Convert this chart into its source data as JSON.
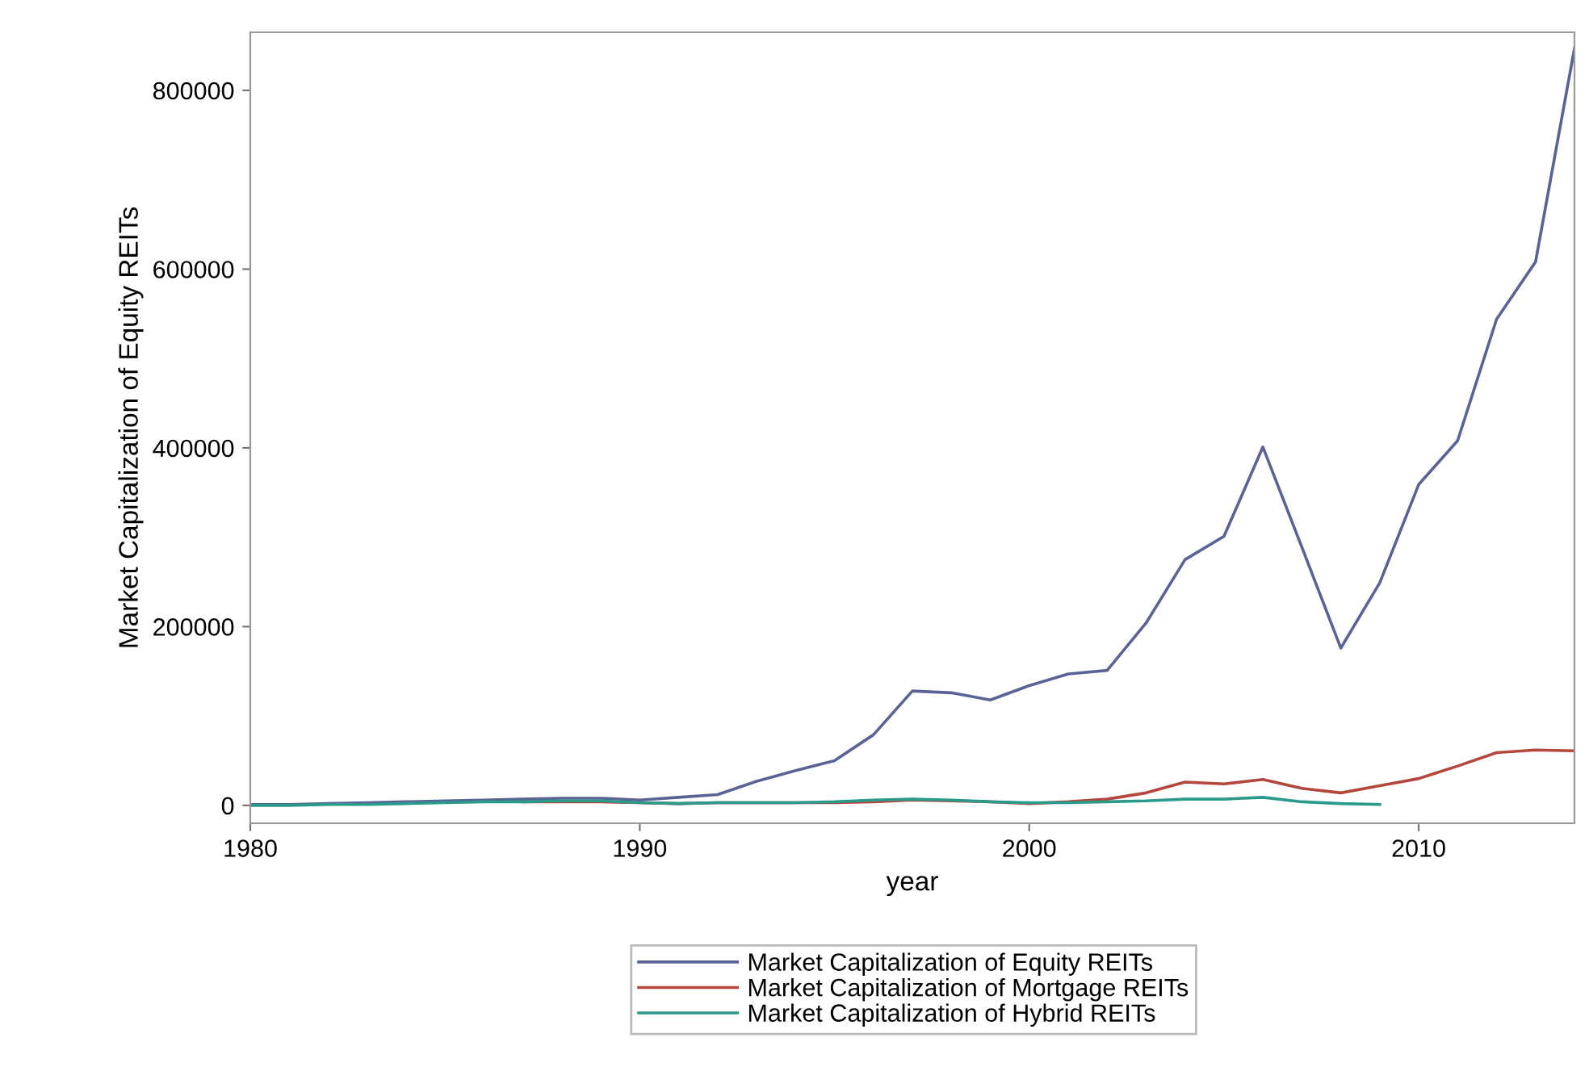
{
  "chart_data": {
    "type": "line",
    "xlabel": "year",
    "ylabel": "Market Capitalization of Equity REITs",
    "x": [
      1980,
      1981,
      1982,
      1983,
      1984,
      1985,
      1986,
      1987,
      1988,
      1989,
      1990,
      1991,
      1992,
      1993,
      1994,
      1995,
      1996,
      1997,
      1998,
      1999,
      2000,
      2001,
      2002,
      2003,
      2004,
      2005,
      2006,
      2007,
      2008,
      2009,
      2010,
      2011,
      2012,
      2013,
      2014
    ],
    "series": [
      {
        "name": "Market Capitalization of Equity REITs",
        "color": "#5b6396",
        "values": [
          1000,
          1000,
          2000,
          3000,
          4000,
          5000,
          6000,
          7000,
          8000,
          8000,
          6000,
          9000,
          12000,
          27000,
          39000,
          50000,
          79000,
          128000,
          126000,
          118000,
          134000,
          147000,
          151000,
          204000,
          275000,
          301000,
          401000,
          289000,
          176000,
          249000,
          359000,
          408000,
          544000,
          608000,
          847000
        ]
      },
      {
        "name": "Market Capitalization of Mortgage REITs",
        "color": "#b4463c",
        "values": [
          null,
          null,
          null,
          null,
          null,
          null,
          null,
          4000,
          4000,
          4000,
          3000,
          2000,
          3000,
          3000,
          3000,
          3000,
          4000,
          6000,
          5000,
          4000,
          2000,
          4000,
          7000,
          14000,
          26000,
          24000,
          29000,
          19000,
          14000,
          22000,
          30000,
          44000,
          59000,
          62000,
          61000
        ]
      },
      {
        "name": "Market Capitalization of Hybrid REITs",
        "color": "#2a9a8a",
        "values": [
          0,
          0,
          1000,
          1000,
          2000,
          3000,
          4000,
          4000,
          5000,
          5000,
          3000,
          2000,
          3000,
          3000,
          3000,
          4000,
          6000,
          7000,
          6000,
          4000,
          3000,
          3000,
          4000,
          5000,
          7000,
          7000,
          9000,
          4000,
          2000,
          1000,
          null,
          null,
          null,
          null,
          null
        ]
      }
    ],
    "xlim": [
      1980,
      2014
    ],
    "xticks": [
      1980,
      1990,
      2000,
      2010
    ],
    "ylim": [
      -20000,
      865000
    ],
    "yticks": [
      0,
      200000,
      400000,
      600000,
      800000
    ],
    "grid": false,
    "legend": "bottom",
    "line_style": "solid",
    "marker": "none"
  }
}
